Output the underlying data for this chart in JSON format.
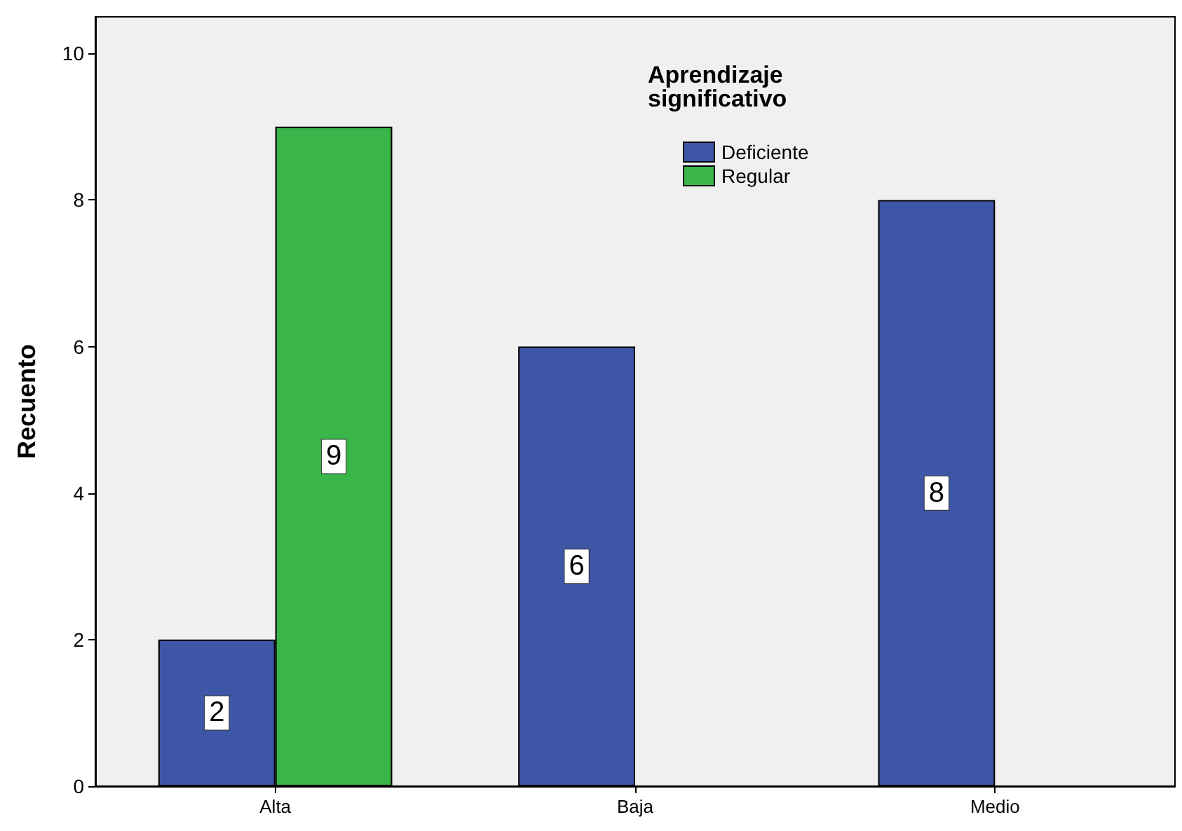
{
  "chart_data": {
    "type": "bar",
    "ylabel": "Recuento",
    "legend_title": "Aprendizaje significativo",
    "categories": [
      "Alta",
      "Baja",
      "Medio"
    ],
    "series": [
      {
        "name": "Deficiente",
        "color": "#3d56a6",
        "values": [
          2,
          6,
          8
        ]
      },
      {
        "name": "Regular",
        "color": "#39b54a",
        "values": [
          9,
          null,
          null
        ]
      }
    ],
    "ylim": [
      0,
      10.5
    ],
    "yticks": [
      0,
      2,
      4,
      6,
      8,
      10
    ],
    "grid": false,
    "legend": "top right",
    "data_labels": true
  }
}
